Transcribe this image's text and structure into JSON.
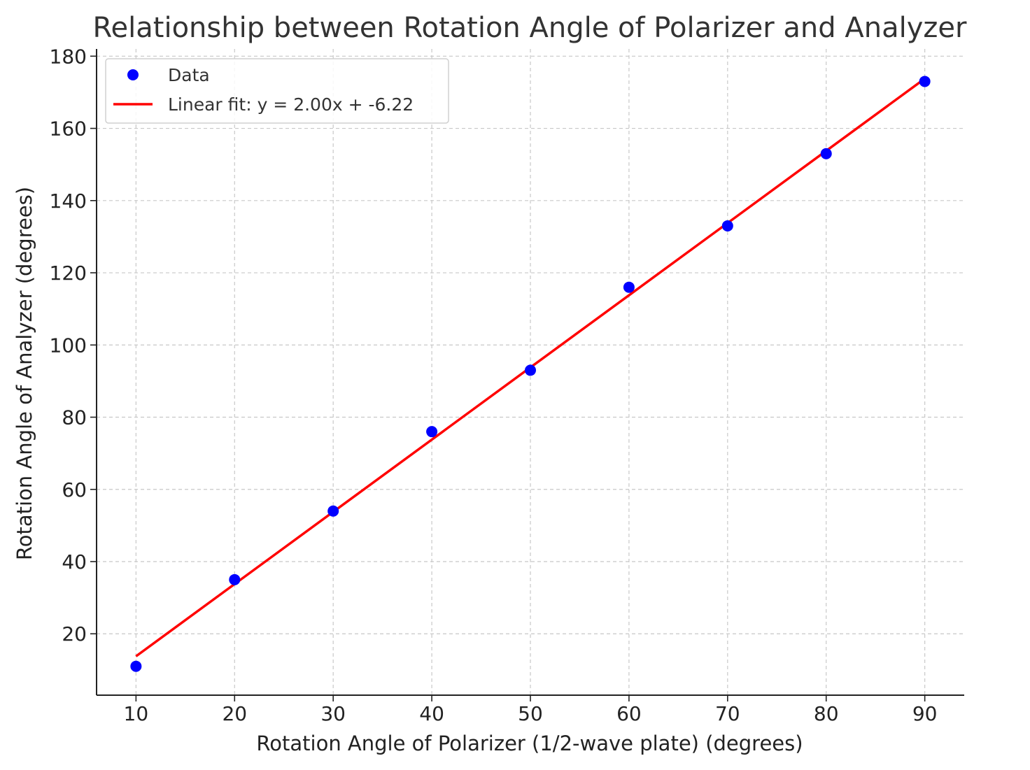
{
  "chart_data": {
    "type": "scatter",
    "title": "Relationship between Rotation Angle of Polarizer and Analyzer",
    "xlabel": "Rotation Angle of Polarizer (1/2-wave plate) (degrees)",
    "ylabel": "Rotation Angle of Analyzer (degrees)",
    "xlim": [
      6,
      94
    ],
    "ylim": [
      3,
      182
    ],
    "xticks": [
      10,
      20,
      30,
      40,
      50,
      60,
      70,
      80,
      90
    ],
    "yticks": [
      20,
      40,
      60,
      80,
      100,
      120,
      140,
      160,
      180
    ],
    "grid": true,
    "legend_position": "top-left",
    "series": [
      {
        "name": "Data",
        "kind": "scatter",
        "color": "#0000ff",
        "x": [
          10,
          20,
          30,
          40,
          50,
          60,
          70,
          80,
          90
        ],
        "y": [
          11,
          35,
          54,
          76,
          93,
          116,
          133,
          153,
          173
        ]
      },
      {
        "name": "Linear fit: y = 2.00x + -6.22",
        "kind": "line",
        "color": "#ff0000",
        "slope": 2.0,
        "intercept": -6.22,
        "x_range": [
          10,
          90
        ]
      }
    ]
  }
}
